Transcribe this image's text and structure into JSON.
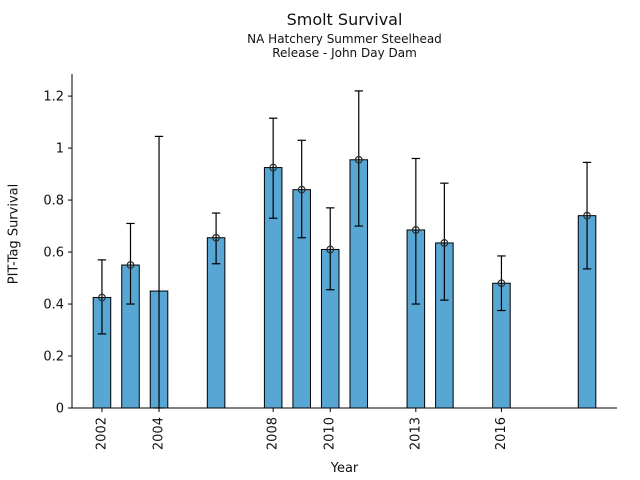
{
  "chart_data": {
    "type": "bar",
    "title": "Smolt Survival",
    "subtitle_lines": [
      "NA Hatchery Summer Steelhead",
      "Release - John Day Dam"
    ],
    "xlabel": "Year",
    "ylabel": "PIT-Tag Survival",
    "points": [
      {
        "year": 2002,
        "value": 0.425,
        "ci_low": 0.285,
        "ci_high": 0.57,
        "marker": true
      },
      {
        "year": 2003,
        "value": 0.55,
        "ci_low": 0.4,
        "ci_high": 0.71,
        "marker": true
      },
      {
        "year": 2004,
        "value": 0.45,
        "ci_low": 0.0,
        "ci_high": 1.045,
        "marker": false
      },
      {
        "year": 2006,
        "value": 0.655,
        "ci_low": 0.555,
        "ci_high": 0.75,
        "marker": true
      },
      {
        "year": 2008,
        "value": 0.925,
        "ci_low": 0.73,
        "ci_high": 1.115,
        "marker": true
      },
      {
        "year": 2009,
        "value": 0.84,
        "ci_low": 0.655,
        "ci_high": 1.03,
        "marker": true
      },
      {
        "year": 2010,
        "value": 0.61,
        "ci_low": 0.455,
        "ci_high": 0.77,
        "marker": true
      },
      {
        "year": 2011,
        "value": 0.955,
        "ci_low": 0.7,
        "ci_high": 1.22,
        "marker": true
      },
      {
        "year": 2013,
        "value": 0.685,
        "ci_low": 0.4,
        "ci_high": 0.96,
        "marker": true
      },
      {
        "year": 2014,
        "value": 0.635,
        "ci_low": 0.415,
        "ci_high": 0.865,
        "marker": true
      },
      {
        "year": 2016,
        "value": 0.48,
        "ci_low": 0.375,
        "ci_high": 0.585,
        "marker": true
      },
      {
        "year": 2019,
        "value": 0.74,
        "ci_low": 0.535,
        "ci_high": 0.945,
        "marker": true
      }
    ],
    "xticks": [
      2002,
      2004,
      2008,
      2010,
      2013,
      2016
    ],
    "ytick_labels": [
      "0",
      "0.2",
      "0.4",
      "0.6",
      "0.8",
      "1",
      "1.2"
    ],
    "xlim": [
      2000.95,
      2020.05
    ],
    "ylim": [
      0,
      1.285
    ],
    "bar_width_years": 0.615,
    "grid": false,
    "legend": null,
    "colors": {
      "bar_fill": "#58A6D4",
      "bar_edge": "#000000",
      "error_bar": "#000000",
      "marker_edge": "#2b2b2b",
      "axis": "#000000",
      "text": "#111111",
      "background": "#ffffff"
    }
  }
}
